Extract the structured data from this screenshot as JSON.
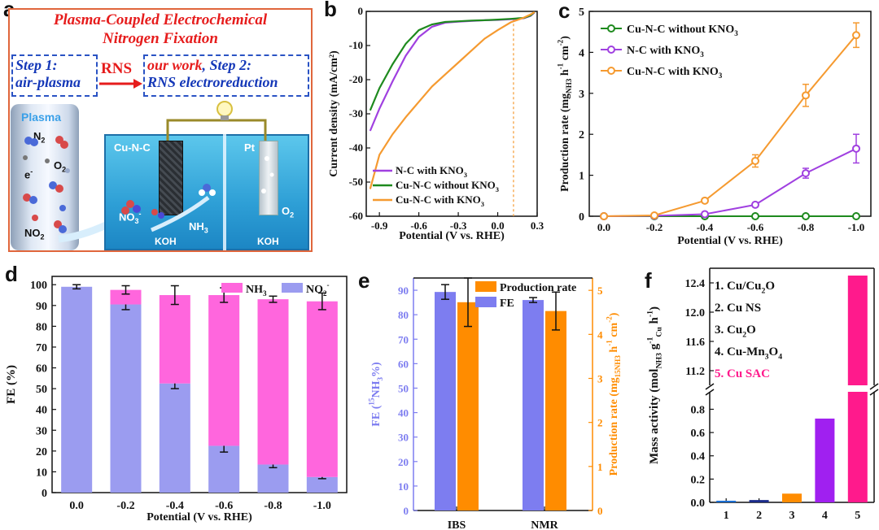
{
  "panels": {
    "a": {
      "letter": "a",
      "title_line1": "Plasma-Coupled Electrochemical",
      "title_line2": "Nitrogen Fixation",
      "step1_line1": "Step 1:",
      "step1_line2": "air-plasma",
      "arrow_label": "RNS",
      "step2_line1_a": "our work",
      "step2_line1_b": ", Step 2:",
      "step2_line2": "RNS electroreduction",
      "plasma_label": "Plasma",
      "n2": "N",
      "n2_sub": "2",
      "o2": "O",
      "o2_sub": "2",
      "electron": "e",
      "electron_sup": "-",
      "no2": "NO",
      "no2_sub": "2",
      "cu_label": "Cu-N-C",
      "pt_label": "Pt",
      "no3": "NO",
      "no3_sub": "3",
      "no3_sup": "-",
      "nh3": "NH",
      "nh3_sub": "3",
      "o2_right": "O",
      "o2_right_sub": "2",
      "koh_left": "KOH",
      "koh_right": "KOH"
    },
    "b": {
      "letter": "b"
    },
    "c": {
      "letter": "c"
    },
    "d": {
      "letter": "d"
    },
    "e": {
      "letter": "e"
    },
    "f": {
      "letter": "f"
    }
  },
  "chart_data": [
    {
      "panel": "b",
      "type": "line",
      "xlabel": "Potential (V vs. RHE)",
      "ylabel": "Current density (mA/cm²)",
      "xlim": [
        -1.0,
        0.3
      ],
      "ylim": [
        -60,
        0
      ],
      "xticks": [
        "-0.9",
        "-0.6",
        "-0.3",
        "0.0",
        "0.3"
      ],
      "yticks": [
        "0",
        "-10",
        "-20",
        "-30",
        "-40",
        "-50",
        "-60"
      ],
      "vline_x": 0.12,
      "series": [
        {
          "name": "N-C with KNO3",
          "color": "#a040e0",
          "x": [
            -0.97,
            -0.9,
            -0.8,
            -0.7,
            -0.6,
            -0.5,
            -0.4,
            -0.3,
            -0.2,
            -0.1,
            0.0,
            0.1,
            0.2,
            0.25,
            0.28
          ],
          "y": [
            -35,
            -28.5,
            -20.5,
            -13,
            -7.5,
            -4.5,
            -3.3,
            -3.0,
            -2.8,
            -2.6,
            -2.5,
            -2.3,
            -2.0,
            -1.3,
            -0.3
          ]
        },
        {
          "name": "Cu-N-C without KNO3",
          "color": "#1e8a1e",
          "x": [
            -0.97,
            -0.9,
            -0.8,
            -0.7,
            -0.6,
            -0.5,
            -0.4,
            -0.3,
            -0.2,
            -0.1,
            0.0,
            0.1,
            0.2,
            0.25,
            0.28
          ],
          "y": [
            -29,
            -22.5,
            -15.5,
            -9.5,
            -5.5,
            -3.8,
            -3.1,
            -2.9,
            -2.7,
            -2.6,
            -2.4,
            -2.2,
            -1.9,
            -1.2,
            -0.2
          ]
        },
        {
          "name": "Cu-N-C with KNO3",
          "color": "#f59a30",
          "x": [
            -0.97,
            -0.9,
            -0.8,
            -0.7,
            -0.6,
            -0.5,
            -0.4,
            -0.3,
            -0.2,
            -0.1,
            0.0,
            0.1,
            0.2,
            0.25,
            0.28
          ],
          "y": [
            -52,
            -42,
            -36,
            -31,
            -26.5,
            -22,
            -18.5,
            -15,
            -11.5,
            -8,
            -5.5,
            -3.2,
            -1.8,
            -0.9,
            -0.2
          ]
        }
      ]
    },
    {
      "panel": "c",
      "type": "line",
      "xlabel": "Potential (V vs. RHE)",
      "ylabel_main": "Production rate (mg",
      "ylabel_sub": "NH3",
      "ylabel_rest": " h",
      "ylabel_sup": "-1",
      "ylabel_end": " cm",
      "ylabel_sup2": "-2",
      "ylabel_close": ")",
      "categories": [
        "0.0",
        "-0.2",
        "-0.4",
        "-0.6",
        "-0.8",
        "-1.0"
      ],
      "x": [
        0.0,
        -0.2,
        -0.4,
        -0.6,
        -0.8,
        -1.0
      ],
      "ylim": [
        0,
        5
      ],
      "yticks": [
        "0",
        "1",
        "2",
        "3",
        "4",
        "5"
      ],
      "series": [
        {
          "name": "Cu-N-C without KNO3",
          "color": "#1e8a1e",
          "values": [
            0.0,
            0.0,
            0.0,
            0.0,
            0.0,
            0.0
          ],
          "err": [
            0.02,
            0.02,
            0.02,
            0.02,
            0.02,
            0.02
          ]
        },
        {
          "name": "N-C with KNO3",
          "color": "#a040e0",
          "values": [
            0.0,
            0.01,
            0.05,
            0.28,
            1.05,
            1.65
          ],
          "err": [
            0.02,
            0.03,
            0.05,
            0.05,
            0.12,
            0.35
          ]
        },
        {
          "name": "Cu-N-C with KNO3",
          "color": "#f59a30",
          "values": [
            0.0,
            0.02,
            0.38,
            1.35,
            2.95,
            4.42
          ],
          "err": [
            0.02,
            0.03,
            0.05,
            0.15,
            0.27,
            0.3
          ]
        }
      ],
      "legend_line1_a": "Cu-N-C without KNO",
      "legend_line1_sub": "3",
      "legend_line2_a": "N-C with KNO",
      "legend_line2_sub": "3",
      "legend_line3_a": "Cu-N-C with KNO",
      "legend_line3_sub": "3"
    },
    {
      "panel": "d",
      "type": "bar",
      "stacked": true,
      "xlabel": "Potential (V vs. RHE)",
      "ylabel": "FE (%)",
      "categories": [
        "0.0",
        "-0.2",
        "-0.4",
        "-0.6",
        "-0.8",
        "-1.0"
      ],
      "ylim": [
        0,
        100
      ],
      "yticks": [
        "0",
        "10",
        "20",
        "30",
        "40",
        "50",
        "60",
        "70",
        "80",
        "90",
        "100"
      ],
      "series": [
        {
          "name": "NO2-",
          "color": "#9b9cf0",
          "values": [
            99,
            90.5,
            52.5,
            22.5,
            13.5,
            7.5
          ],
          "err": [
            1,
            2.5,
            2.5,
            3,
            1.5,
            0.8
          ]
        },
        {
          "name": "NH3",
          "color": "#ff66dd",
          "values": [
            0,
            7,
            42.5,
            72.5,
            79.5,
            84.5
          ],
          "err": [
            0,
            2,
            4.5,
            3.5,
            1.5,
            4
          ]
        }
      ],
      "legend_nh3": "NH",
      "legend_nh3_sub": "3",
      "legend_no2": "NO",
      "legend_no2_sub": "2",
      "legend_no2_sup": "-"
    },
    {
      "panel": "e",
      "type": "bar",
      "categories": [
        "IBS",
        "NMR"
      ],
      "ylabel_left": "FE (",
      "ylabel_left_sup": "15",
      "ylabel_left_rest": "NH",
      "ylabel_left_sub": "3",
      "ylabel_left_end": "%)",
      "ylabel_right": "Production rate (mg",
      "ylabel_right_sub": "15NH3",
      "ylabel_right_rest": " h",
      "ylabel_right_sup": "-1",
      "ylabel_right_end": " cm",
      "ylabel_right_sup2": "-2",
      "ylabel_right_close": ")",
      "ylim_left": [
        0,
        95
      ],
      "ylim_right": [
        0,
        5.28
      ],
      "yticks_left": [
        "0",
        "10",
        "20",
        "30",
        "40",
        "50",
        "60",
        "70",
        "80",
        "90"
      ],
      "yticks_right": [
        "0",
        "1",
        "2",
        "3",
        "4",
        "5"
      ],
      "series": [
        {
          "name": "FE",
          "color": "#7d7df0",
          "axis": "left",
          "values": [
            89.3,
            86.0
          ],
          "err": [
            3.0,
            1.0
          ]
        },
        {
          "name": "Production rate",
          "color": "#ff8c00",
          "axis": "right",
          "values": [
            4.73,
            4.53
          ],
          "err": [
            0.55,
            0.43
          ]
        }
      ]
    },
    {
      "panel": "f",
      "type": "bar",
      "ylabel_main": "Mass activity (mol",
      "ylabel_sub": "NH3",
      "ylabel_mid": " g",
      "ylabel_sup": "-1",
      "ylabel_sub2": "Cu",
      "ylabel_rest": " h",
      "ylabel_sup2": "-1",
      "ylabel_close": ")",
      "categories": [
        "1",
        "2",
        "3",
        "4",
        "5"
      ],
      "values": [
        0.005,
        0.02,
        0.075,
        0.72,
        12.5
      ],
      "colors": [
        "#1a6dd1",
        "#1a2a8a",
        "#ff8c00",
        "#a020f0",
        "#ff1a8c"
      ],
      "broken_axis": {
        "lower": [
          0,
          0.95
        ],
        "upper": [
          11.0,
          12.6
        ]
      },
      "yticks_lower": [
        "0.0",
        "0.2",
        "0.4",
        "0.6",
        "0.8"
      ],
      "yticks_upper": [
        "11.2",
        "11.6",
        "12.0",
        "12.4"
      ],
      "legend": [
        {
          "n": "1. ",
          "text": "Cu/Cu",
          "sub": "2",
          "after": "O",
          "color": "#111"
        },
        {
          "n": "2. ",
          "text": "Cu NS",
          "sub": "",
          "after": "",
          "color": "#111"
        },
        {
          "n": "3. ",
          "text": "Cu",
          "sub": "2",
          "after": "O",
          "color": "#111"
        },
        {
          "n": "4. ",
          "text": "Cu-Mn",
          "sub": "3",
          "after": "O",
          "sub2": "4",
          "color": "#111"
        },
        {
          "n": "5. ",
          "text": "Cu SAC",
          "sub": "",
          "after": "",
          "color": "#ff1a8c"
        }
      ]
    }
  ]
}
